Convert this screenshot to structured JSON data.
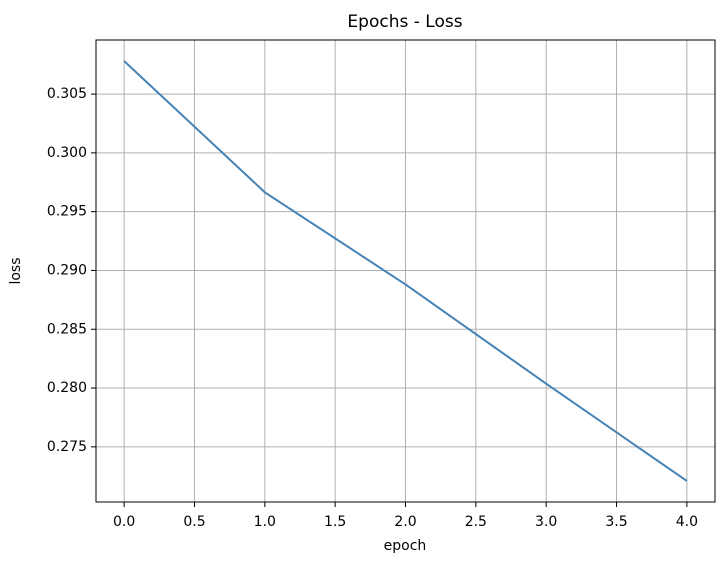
{
  "chart_data": {
    "type": "line",
    "title": "Epochs - Loss",
    "x_label": "epoch",
    "y_label": "loss",
    "x": [
      0,
      1,
      2,
      3,
      4
    ],
    "series": [
      {
        "name": "loss",
        "color": "#4682b4",
        "values": [
          0.30781,
          0.29665,
          0.28881,
          0.28037,
          0.2721
        ]
      }
    ],
    "xlim": [
      -0.2,
      4.2
    ],
    "xticks": [
      {
        "value": 0,
        "label": "0.0"
      },
      0.5,
      {
        "value": 1,
        "label": "1.0"
      },
      1.5,
      {
        "value": 2,
        "label": "2.0"
      },
      2.5,
      {
        "value": 3,
        "label": "3.0"
      },
      3.5,
      {
        "value": 4,
        "label": "4.0"
      }
    ],
    "ylim": [
      0.27031,
      0.3096
    ],
    "yticks": [
      0.275,
      {
        "value": 0.28,
        "label": "0.280"
      },
      0.285,
      {
        "value": 0.29,
        "label": "0.290"
      },
      0.295,
      {
        "value": 0.3,
        "label": "0.300"
      },
      0.305
    ],
    "grid": true
  }
}
